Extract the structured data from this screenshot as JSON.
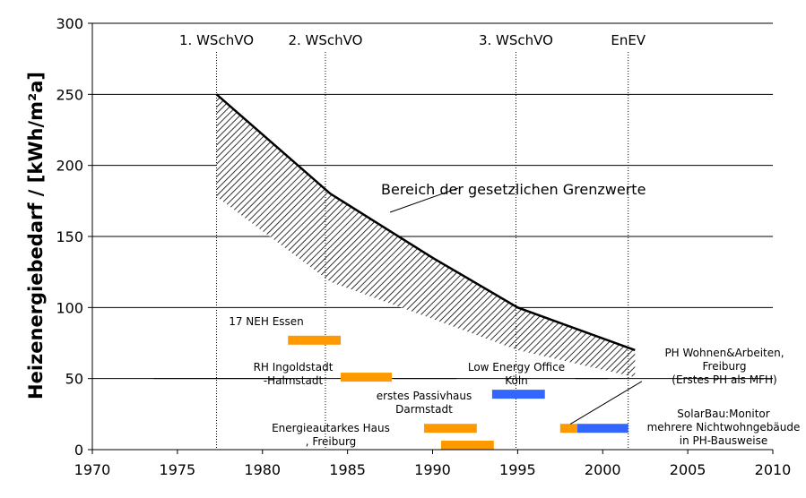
{
  "chart_data": {
    "type": "line",
    "title": "",
    "xlabel": "",
    "ylabel": "Heizenergiebedarf / [kWh/m²a]",
    "xlim": [
      1970,
      2010
    ],
    "ylim": [
      0,
      300
    ],
    "xticks": [
      1970,
      1975,
      1980,
      1985,
      1990,
      1995,
      2000,
      2005,
      2010
    ],
    "yticks": [
      0,
      50,
      100,
      150,
      200,
      250,
      300
    ],
    "grid": "horizontal",
    "series": [
      {
        "name": "",
        "role": "upper-limit",
        "color": "#000000",
        "x": [
          1977.3,
          1984,
          1990,
          1995,
          2001.9
        ],
        "y": [
          250,
          180,
          135,
          100,
          70
        ]
      },
      {
        "name": "",
        "role": "lower-limit",
        "x": [
          1977.3,
          1984,
          1990,
          1995,
          2001.9
        ],
        "y": [
          178,
          118,
          92,
          70,
          51
        ]
      }
    ],
    "range_label": "Bereich der gesetzlichen Grenzwerte",
    "regulations": [
      {
        "label": "1. WSchVO",
        "year": 1977.3
      },
      {
        "label": "2. WSchVO",
        "year": 1983.7
      },
      {
        "label": "3. WSchVO",
        "year": 1994.9
      },
      {
        "label": "EnEV",
        "year": 2001.5
      }
    ],
    "projects": [
      {
        "lines": [
          "17 NEH Essen"
        ],
        "start": 1981.5,
        "end": 1984.6,
        "value": 77,
        "color": "#ff9900"
      },
      {
        "lines": [
          "RH Ingoldstadt",
          "-Halmstadt"
        ],
        "start": 1984.6,
        "end": 1987.6,
        "value": 51,
        "color": "#ff9900"
      },
      {
        "lines": [
          "erstes Passivhaus",
          "Darmstadt"
        ],
        "start": 1989.5,
        "end": 1992.6,
        "value": 15,
        "color": "#ff9900"
      },
      {
        "lines": [
          "Energieautarkes Haus",
          ", Freiburg"
        ],
        "start": 1990.5,
        "end": 1993.6,
        "value": 0,
        "color": "#ff9900"
      },
      {
        "lines": [
          "Low Energy Office",
          "Köln"
        ],
        "start": 1993.5,
        "end": 1996.6,
        "value": 39,
        "color": "#3366ff"
      },
      {
        "lines": [
          "PH Wohnen&Arbeiten,",
          "Freiburg",
          "(Erstes PH als MFH)"
        ],
        "start": 1997.5,
        "end": 1998.5,
        "value": 15,
        "color": "#ff9900"
      },
      {
        "lines": [
          "SolarBau:Monitor",
          "mehrere Nichtwohngebäude",
          "in PH-Bausweise"
        ],
        "start": 1998.5,
        "end": 2001.5,
        "value": 15,
        "color": "#3366ff"
      }
    ]
  }
}
